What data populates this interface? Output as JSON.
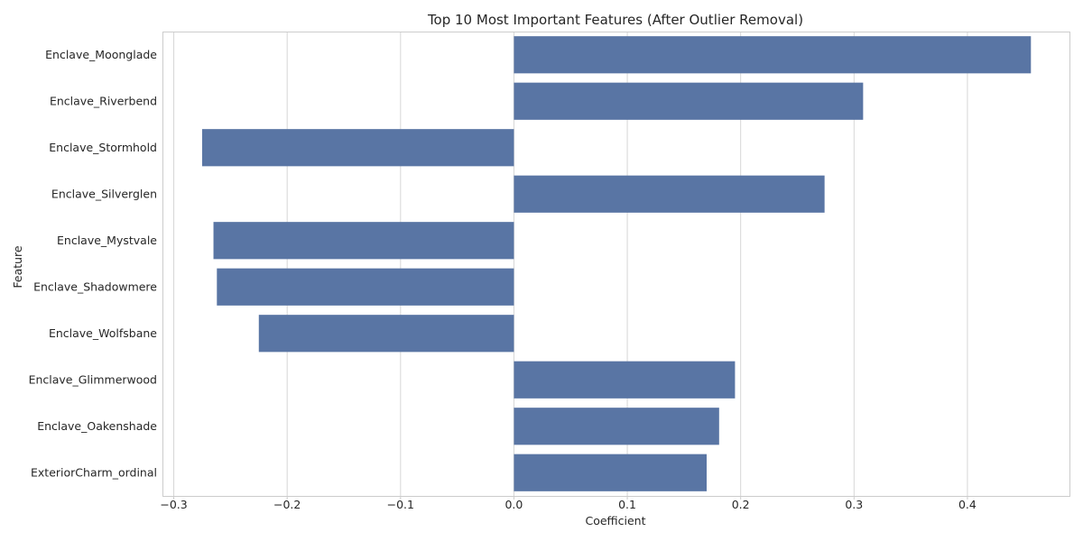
{
  "chart_data": {
    "type": "bar",
    "orientation": "horizontal",
    "title": "Top 10 Most Important Features (After Outlier Removal)",
    "xlabel": "Coefficient",
    "ylabel": "Feature",
    "categories": [
      "Enclave_Moonglade",
      "Enclave_Riverbend",
      "Enclave_Stormhold",
      "Enclave_Silverglen",
      "Enclave_Mystvale",
      "Enclave_Shadowmere",
      "Enclave_Wolfsbane",
      "Enclave_Glimmerwood",
      "Enclave_Oakenshade",
      "ExteriorCharm_ordinal"
    ],
    "values": [
      0.456,
      0.308,
      -0.275,
      0.274,
      -0.265,
      -0.262,
      -0.225,
      0.195,
      0.181,
      0.17
    ],
    "xlim": [
      -0.31,
      0.49
    ],
    "xticks": [
      -0.3,
      -0.2,
      -0.1,
      0.0,
      0.1,
      0.2,
      0.3,
      0.4
    ],
    "xtick_labels": [
      "−0.3",
      "−0.2",
      "−0.1",
      "0.0",
      "0.1",
      "0.2",
      "0.3",
      "0.4"
    ],
    "grid": true,
    "bar_color": "#5975a4"
  }
}
